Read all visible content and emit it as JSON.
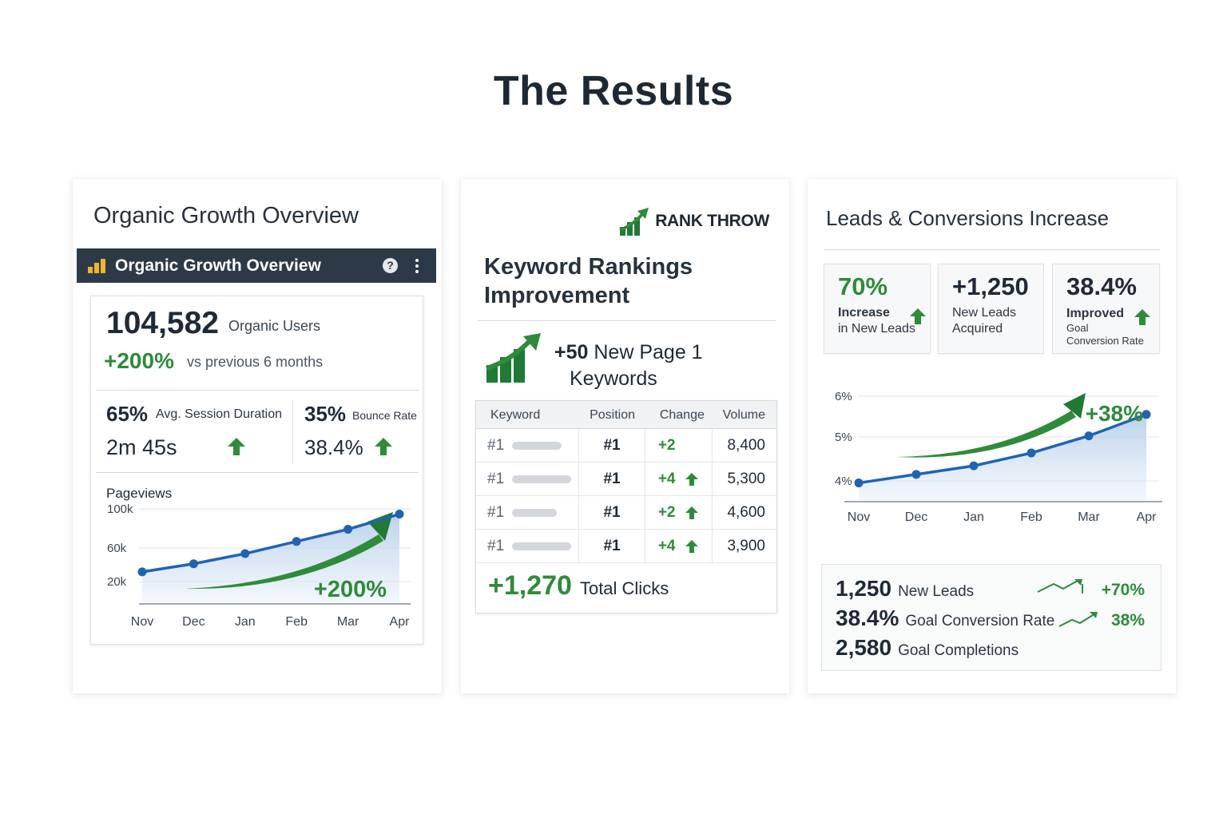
{
  "page": {
    "title": "The Results"
  },
  "organic": {
    "heading": "Organic Growth Overview",
    "widget_title": "Organic Growth Overview",
    "help_symbol": "?",
    "users_value": "104,582",
    "users_label": "Organic Users",
    "growth_value": "+200%",
    "growth_label": "vs previous 6 months",
    "duration_pct": "65%",
    "duration_label": "Avg. Session Duration",
    "duration_value": "2m 45s",
    "bounce_pct": "35%",
    "bounce_label": "Bounce Rate",
    "bounce_value": "38.4%",
    "chart_callout": "+200%"
  },
  "keywords": {
    "brand": "RANK THROW",
    "heading_line1": "Keyword Rankings",
    "heading_line2": "Improvement",
    "new_page_value": "+50",
    "new_page_label_line1": "New Page 1",
    "new_page_label_line2": "Keywords",
    "columns": [
      "Keyword",
      "Position",
      "Change",
      "Volume"
    ],
    "rows": [
      {
        "keyword": "#1",
        "position": "#1",
        "change": "+2",
        "volume": "8,400"
      },
      {
        "keyword": "#1",
        "position": "#1",
        "change": "+4",
        "volume": "5,300"
      },
      {
        "keyword": "#1",
        "position": "#1",
        "change": "+2",
        "volume": "4,600"
      },
      {
        "keyword": "#1",
        "position": "#1",
        "change": "+4",
        "volume": "3,900"
      }
    ],
    "total_value": "+1,270",
    "total_label": "Total Clicks"
  },
  "leads": {
    "heading": "Leads & Conversions Increase",
    "stats": [
      {
        "value": "70%",
        "label_line1": "Increase",
        "label_line2": "in New Leads"
      },
      {
        "value": "+1,250",
        "label_line1": "New Leads",
        "label_line2": "Acquired"
      },
      {
        "value": "38.4%",
        "label_line1": "Improved",
        "label_line2": "Goal",
        "label_line3": "Conversion Rate"
      }
    ],
    "chart_callout": "+38%",
    "summary": [
      {
        "value": "1,250",
        "label": "New Leads",
        "delta": "+70%"
      },
      {
        "value": "38.4%",
        "label": "Goal Conversion Rate",
        "delta": "38%"
      },
      {
        "value": "2,580",
        "label": "Goal Completions"
      }
    ]
  },
  "colors": {
    "green": "#2e8b3a",
    "blue": "#1f63b5",
    "dark_bar": "#2c3a47",
    "gold": "#f3b428"
  },
  "chart_data": [
    {
      "type": "line",
      "title": "Pageviews",
      "categories": [
        "Nov",
        "Dec",
        "Jan",
        "Feb",
        "Mar",
        "Apr"
      ],
      "ytick_labels": [
        "100k",
        "60k",
        "20k"
      ],
      "ylim": [
        0,
        100000
      ],
      "series": [
        {
          "values": [
            30000,
            38000,
            48000,
            60000,
            72000,
            87000
          ]
        }
      ],
      "grid": true
    },
    {
      "type": "line",
      "categories": [
        "Nov",
        "Dec",
        "Jan",
        "Feb",
        "Mar",
        "Apr"
      ],
      "ytick_labels": [
        "6%",
        "5%",
        "4%"
      ],
      "ylim": [
        3.5,
        6
      ],
      "series": [
        {
          "values": [
            3.9,
            4.1,
            4.3,
            4.6,
            5.0,
            5.5
          ]
        }
      ],
      "grid": true
    }
  ]
}
